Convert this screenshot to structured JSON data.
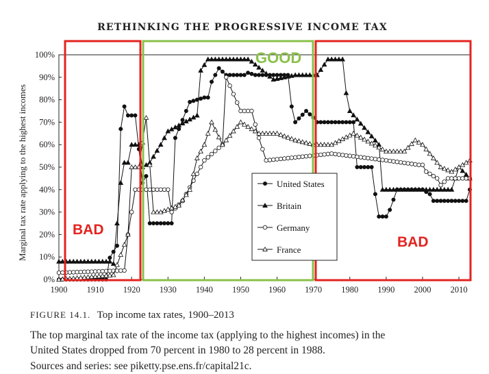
{
  "header": {
    "title": "RETHINKING THE PROGRESSIVE INCOME TAX"
  },
  "annotations": {
    "good": "GOOD",
    "bad_left": "BAD",
    "bad_right": "BAD",
    "box_good_color": "#8ac04a",
    "box_bad_color": "#e3231f"
  },
  "caption": {
    "figure_number": "FIGURE 14.1.",
    "figure_title": "Top income tax rates, 1900–2013",
    "line1": "The top marginal tax rate of the income tax (applying to the highest incomes) in the",
    "line2": "United States dropped from 70 percent in 1980 to 28 percent in 1988.",
    "line3": "Sources and series: see piketty.pse.ens.fr/capital21c."
  },
  "chart_data": {
    "type": "line",
    "ylabel": "Marginal tax rate applying to the highest incomes",
    "xlim": [
      1900,
      2013
    ],
    "ylim": [
      0,
      100
    ],
    "x_ticks": [
      "1900",
      "1910",
      "1920",
      "1930",
      "1940",
      "1950",
      "1960",
      "1970",
      "1980",
      "1990",
      "2000",
      "2010"
    ],
    "y_ticks": [
      "0%",
      "10%",
      "20%",
      "30%",
      "40%",
      "50%",
      "60%",
      "70%",
      "80%",
      "90%",
      "100%"
    ],
    "legend_position": "lower-center",
    "shaded_periods": [
      {
        "label": "BAD",
        "from": 1900,
        "to": 1921
      },
      {
        "label": "GOOD",
        "from": 1922,
        "to": 1970
      },
      {
        "label": "BAD",
        "from": 1971,
        "to": 2013
      }
    ],
    "series": [
      {
        "name": "United States",
        "marker": "filled-circle",
        "points": [
          [
            1900,
            0
          ],
          [
            1913,
            0
          ],
          [
            1913,
            7
          ],
          [
            1916,
            15
          ],
          [
            1917,
            67
          ],
          [
            1918,
            77
          ],
          [
            1919,
            73
          ],
          [
            1921,
            73
          ],
          [
            1922,
            58
          ],
          [
            1923,
            43
          ],
          [
            1924,
            46
          ],
          [
            1925,
            25
          ],
          [
            1931,
            25
          ],
          [
            1932,
            63
          ],
          [
            1936,
            79
          ],
          [
            1940,
            81
          ],
          [
            1941,
            81
          ],
          [
            1942,
            88
          ],
          [
            1944,
            94
          ],
          [
            1946,
            91
          ],
          [
            1951,
            91
          ],
          [
            1952,
            92
          ],
          [
            1954,
            91
          ],
          [
            1963,
            91
          ],
          [
            1964,
            77
          ],
          [
            1965,
            70
          ],
          [
            1968,
            75
          ],
          [
            1970,
            72
          ],
          [
            1971,
            70
          ],
          [
            1981,
            70
          ],
          [
            1982,
            50
          ],
          [
            1986,
            50
          ],
          [
            1987,
            38
          ],
          [
            1988,
            28
          ],
          [
            1990,
            28
          ],
          [
            1991,
            31
          ],
          [
            1993,
            40
          ],
          [
            2000,
            40
          ],
          [
            2001,
            39
          ],
          [
            2002,
            38
          ],
          [
            2003,
            35
          ],
          [
            2012,
            35
          ],
          [
            2013,
            40
          ]
        ]
      },
      {
        "name": "Britain",
        "marker": "filled-triangle",
        "points": [
          [
            1900,
            8
          ],
          [
            1909,
            8
          ],
          [
            1910,
            8
          ],
          [
            1914,
            8
          ],
          [
            1915,
            7
          ],
          [
            1917,
            43
          ],
          [
            1918,
            52
          ],
          [
            1919,
            52
          ],
          [
            1920,
            60
          ],
          [
            1922,
            60
          ],
          [
            1923,
            50
          ],
          [
            1925,
            52
          ],
          [
            1928,
            60
          ],
          [
            1930,
            66
          ],
          [
            1938,
            73
          ],
          [
            1939,
            93
          ],
          [
            1941,
            98
          ],
          [
            1951,
            98
          ],
          [
            1952,
            98
          ],
          [
            1953,
            97
          ],
          [
            1959,
            89
          ],
          [
            1965,
            91
          ],
          [
            1971,
            91
          ],
          [
            1974,
            98
          ],
          [
            1978,
            98
          ],
          [
            1979,
            83
          ],
          [
            1980,
            75
          ],
          [
            1988,
            60
          ],
          [
            1989,
            40
          ],
          [
            2008,
            40
          ],
          [
            2010,
            50
          ],
          [
            2013,
            45
          ]
        ]
      },
      {
        "name": "Germany",
        "marker": "open-circle",
        "points": [
          [
            1900,
            3
          ],
          [
            1918,
            4
          ],
          [
            1919,
            20
          ],
          [
            1920,
            30
          ],
          [
            1921,
            40
          ],
          [
            1930,
            40
          ],
          [
            1931,
            30
          ],
          [
            1934,
            35
          ],
          [
            1940,
            53
          ],
          [
            1945,
            60
          ],
          [
            1946,
            90
          ],
          [
            1950,
            75
          ],
          [
            1953,
            75
          ],
          [
            1955,
            63
          ],
          [
            1957,
            53
          ],
          [
            1975,
            56
          ],
          [
            1990,
            53
          ],
          [
            1999,
            51
          ],
          [
            2000,
            51
          ],
          [
            2001,
            48
          ],
          [
            2004,
            45
          ],
          [
            2005,
            42
          ],
          [
            2007,
            45
          ],
          [
            2013,
            45
          ]
        ]
      },
      {
        "name": "France",
        "marker": "open-triangle",
        "points": [
          [
            1900,
            0
          ],
          [
            1915,
            2
          ],
          [
            1919,
            20
          ],
          [
            1920,
            50
          ],
          [
            1922,
            50
          ],
          [
            1924,
            72
          ],
          [
            1926,
            30
          ],
          [
            1928,
            30
          ],
          [
            1933,
            33
          ],
          [
            1936,
            40
          ],
          [
            1938,
            54
          ],
          [
            1940,
            60
          ],
          [
            1942,
            70
          ],
          [
            1945,
            60
          ],
          [
            1950,
            70
          ],
          [
            1955,
            65
          ],
          [
            1960,
            65
          ],
          [
            1965,
            62
          ],
          [
            1970,
            60
          ],
          [
            1975,
            60
          ],
          [
            1981,
            65
          ],
          [
            1990,
            57
          ],
          [
            1995,
            57
          ],
          [
            1998,
            62
          ],
          [
            2000,
            60
          ],
          [
            2005,
            50
          ],
          [
            2008,
            48
          ],
          [
            2013,
            53
          ]
        ]
      }
    ]
  }
}
